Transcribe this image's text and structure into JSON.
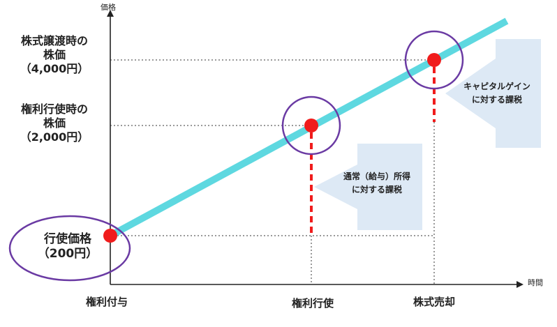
{
  "axes": {
    "y_title": "価格",
    "x_title": "時間"
  },
  "y_levels": {
    "transfer": {
      "line1": "株式譲渡時の",
      "line2": "株価",
      "line3": "（4,000円）"
    },
    "exercise": {
      "line1": "権利行使時の",
      "line2": "株価",
      "line3": "（2,000円）"
    },
    "strike": {
      "line1": "行使価格",
      "line2": "（200円）"
    }
  },
  "x_events": {
    "grant": "権利付与",
    "exercise": "権利行使",
    "sale": "株式売却"
  },
  "annotations": {
    "ordinary": {
      "line1": "通常（給与）所得",
      "line2": "に対する課税"
    },
    "capital": {
      "line1": "キャピタルゲイン",
      "line2": "に対する課税"
    }
  },
  "colors": {
    "price_line": "#5ed8e0",
    "marker": "#f01c1c",
    "circle": "#6a3aa3",
    "arrow_fill": "#dde9f5",
    "axis": "#222222"
  }
}
